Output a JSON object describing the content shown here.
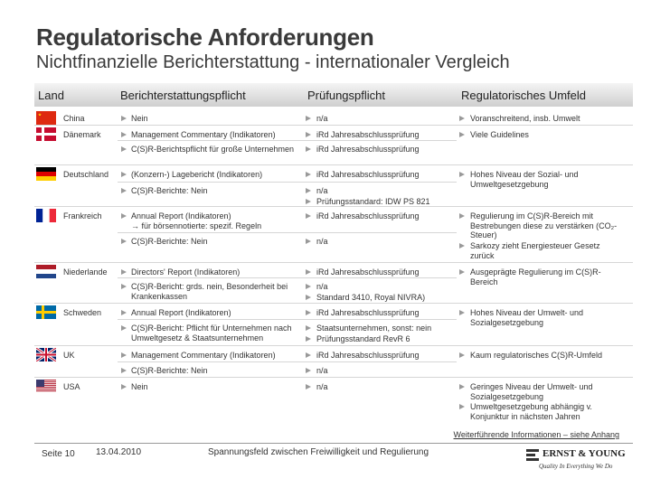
{
  "header": {
    "title": "Regulatorische Anforderungen",
    "subtitle": "Nichtfinanzielle Berichterstattung - internationaler Vergleich"
  },
  "table": {
    "columns": [
      "Land",
      "Berichterstattungspflicht",
      "Prüfungspflicht",
      "Regulatorisches Umfeld"
    ],
    "countries": [
      {
        "land": "China",
        "rows": [
          {
            "bericht": [
              "Nein"
            ],
            "pruefung": [
              "n/a"
            ]
          }
        ],
        "umfeld": [
          "Voranschreitend, insb. Umwelt"
        ]
      },
      {
        "land": "Dänemark",
        "rows": [
          {
            "bericht": [
              "Management Commentary (Indikatoren)"
            ],
            "pruefung": [
              "iRd Jahresabschlussprüfung"
            ]
          },
          {
            "bericht": [
              "C(S)R-Berichtspflicht für große Unternehmen"
            ],
            "pruefung": [
              "iRd Jahresabschlussprüfung"
            ]
          }
        ],
        "umfeld": [
          "Viele Guidelines"
        ]
      },
      {
        "land": "Deutschland",
        "rows": [
          {
            "bericht": [
              "(Konzern-) Lagebericht (Indikatoren)"
            ],
            "pruefung": [
              "iRd Jahresabschlussprüfung"
            ]
          },
          {
            "bericht": [
              "C(S)R-Berichte: Nein"
            ],
            "pruefung": [
              "n/a",
              "Prüfungsstandard: IDW PS 821"
            ]
          }
        ],
        "umfeld": [
          "Hohes Niveau der Sozial- und Umweltgesetzgebung"
        ]
      },
      {
        "land": "Frankreich",
        "rows": [
          {
            "bericht": [
              "Annual Report (Indikatoren)\n→ für börsennotierte: spezif. Regeln"
            ],
            "pruefung": [
              "iRd Jahresabschlussprüfung"
            ]
          },
          {
            "bericht": [
              "C(S)R-Berichte: Nein"
            ],
            "pruefung": [
              "n/a"
            ]
          }
        ],
        "umfeld": [
          "Regulierung im C(S)R-Bereich mit Bestrebungen diese zu verstärken (CO₂-Steuer)",
          "Sarkozy zieht Energiesteuer Gesetz zurück"
        ]
      },
      {
        "land": "Niederlande",
        "rows": [
          {
            "bericht": [
              "Directors' Report (Indikatoren)"
            ],
            "pruefung": [
              "iRd Jahresabschlussprüfung"
            ]
          },
          {
            "bericht": [
              "C(S)R-Bericht: grds. nein, Besonderheit bei Krankenkassen"
            ],
            "pruefung": [
              "n/a",
              "Standard 3410, Royal NIVRA)"
            ]
          }
        ],
        "umfeld": [
          "Ausgeprägte Regulierung im C(S)R-Bereich"
        ]
      },
      {
        "land": "Schweden",
        "rows": [
          {
            "bericht": [
              "Annual Report (Indikatoren)"
            ],
            "pruefung": [
              "iRd Jahresabschlussprüfung"
            ]
          },
          {
            "bericht": [
              "C(S)R-Bericht: Pflicht für Unternehmen nach Umweltgesetz & Staatsunternehmen"
            ],
            "pruefung": [
              "Staatsunternehmen, sonst: nein",
              "Prüfungsstandard RevR 6"
            ]
          }
        ],
        "umfeld": [
          "Hohes Niveau der Umwelt- und Sozialgesetzgebung"
        ]
      },
      {
        "land": "UK",
        "rows": [
          {
            "bericht": [
              "Management Commentary (Indikatoren)"
            ],
            "pruefung": [
              "iRd Jahresabschlussprüfung"
            ]
          },
          {
            "bericht": [
              "C(S)R-Berichte: Nein"
            ],
            "pruefung": [
              "n/a"
            ]
          }
        ],
        "umfeld": [
          "Kaum regulatorisches C(S)R-Umfeld"
        ]
      },
      {
        "land": "USA",
        "rows": [
          {
            "bericht": [
              "Nein"
            ],
            "pruefung": [
              "n/a"
            ]
          }
        ],
        "umfeld": [
          "Geringes Niveau der Umwelt- und Sozialgesetzgebung",
          "Umweltgesetzgebung abhängig v. Konjunktur in nächsten Jahren"
        ]
      }
    ]
  },
  "note": "Weiterführende Informationen – siehe Anhang",
  "footer": {
    "page": "Seite 10",
    "date": "13.04.2010",
    "title": "Spannungsfeld zwischen Freiwilligkeit und Regulierung",
    "logo": "ERNST & YOUNG",
    "tagline": "Quality In Everything We Do"
  }
}
